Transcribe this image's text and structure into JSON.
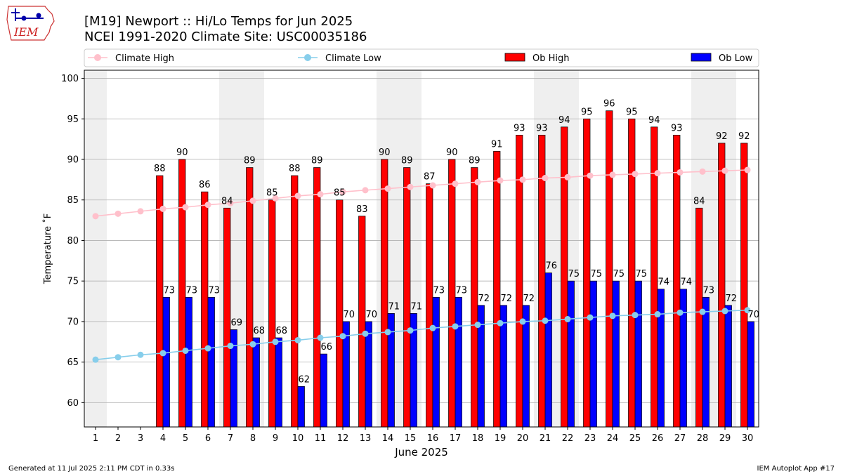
{
  "logo": {
    "text": "IEM"
  },
  "title_line1": "[M19] Newport :: Hi/Lo Temps for Jun 2025",
  "title_line2": "NCEI 1991-2020 Climate Site: USC00035186",
  "footer_left": "Generated at 11 Jul 2025 2:11 PM CDT in 0.33s",
  "footer_right": "IEM Autoplot App #17",
  "colors": {
    "climate_high": "#ffc0cb",
    "climate_low": "#87ceeb",
    "ob_high": "#ff0000",
    "ob_low": "#0000ff",
    "weekend_band": "#efefef",
    "grid": "#b0b0b0"
  },
  "chart_data": {
    "type": "bar",
    "xlabel": "June 2025",
    "ylabel": "Temperature ˚F",
    "ylim": [
      57,
      101
    ],
    "yticks": [
      60,
      65,
      70,
      75,
      80,
      85,
      90,
      95,
      100
    ],
    "grid": "horizontal",
    "legend_placement": "top",
    "weekend_bands": [
      [
        1,
        1
      ],
      [
        7,
        8
      ],
      [
        14,
        15
      ],
      [
        21,
        22
      ],
      [
        28,
        29
      ]
    ],
    "days": [
      1,
      2,
      3,
      4,
      5,
      6,
      7,
      8,
      9,
      10,
      11,
      12,
      13,
      14,
      15,
      16,
      17,
      18,
      19,
      20,
      21,
      22,
      23,
      24,
      25,
      26,
      27,
      28,
      29,
      30
    ],
    "series": [
      {
        "name": "Climate High",
        "kind": "line",
        "values": [
          83.0,
          83.3,
          83.6,
          83.9,
          84.1,
          84.4,
          84.6,
          84.9,
          85.2,
          85.5,
          85.7,
          86.0,
          86.2,
          86.4,
          86.6,
          86.8,
          87.0,
          87.2,
          87.4,
          87.5,
          87.7,
          87.8,
          88.0,
          88.1,
          88.2,
          88.3,
          88.4,
          88.5,
          88.6,
          88.7
        ]
      },
      {
        "name": "Climate Low",
        "kind": "line",
        "values": [
          65.3,
          65.6,
          65.9,
          66.1,
          66.4,
          66.7,
          67.0,
          67.2,
          67.5,
          67.7,
          68.0,
          68.2,
          68.5,
          68.7,
          68.9,
          69.2,
          69.4,
          69.6,
          69.8,
          70.0,
          70.1,
          70.3,
          70.5,
          70.7,
          70.8,
          70.9,
          71.1,
          71.2,
          71.3,
          71.4
        ]
      },
      {
        "name": "Ob High",
        "kind": "bar",
        "values": [
          null,
          null,
          null,
          88,
          90,
          86,
          84,
          89,
          85,
          88,
          89,
          85,
          83,
          90,
          89,
          87,
          90,
          89,
          91,
          93,
          93,
          94,
          95,
          96,
          95,
          94,
          93,
          84,
          92,
          92
        ]
      },
      {
        "name": "Ob Low",
        "kind": "bar",
        "values": [
          null,
          null,
          null,
          73,
          73,
          73,
          69,
          68,
          68,
          62,
          66,
          70,
          70,
          71,
          71,
          73,
          73,
          72,
          72,
          72,
          76,
          75,
          75,
          75,
          75,
          74,
          74,
          73,
          72,
          70
        ]
      }
    ]
  }
}
